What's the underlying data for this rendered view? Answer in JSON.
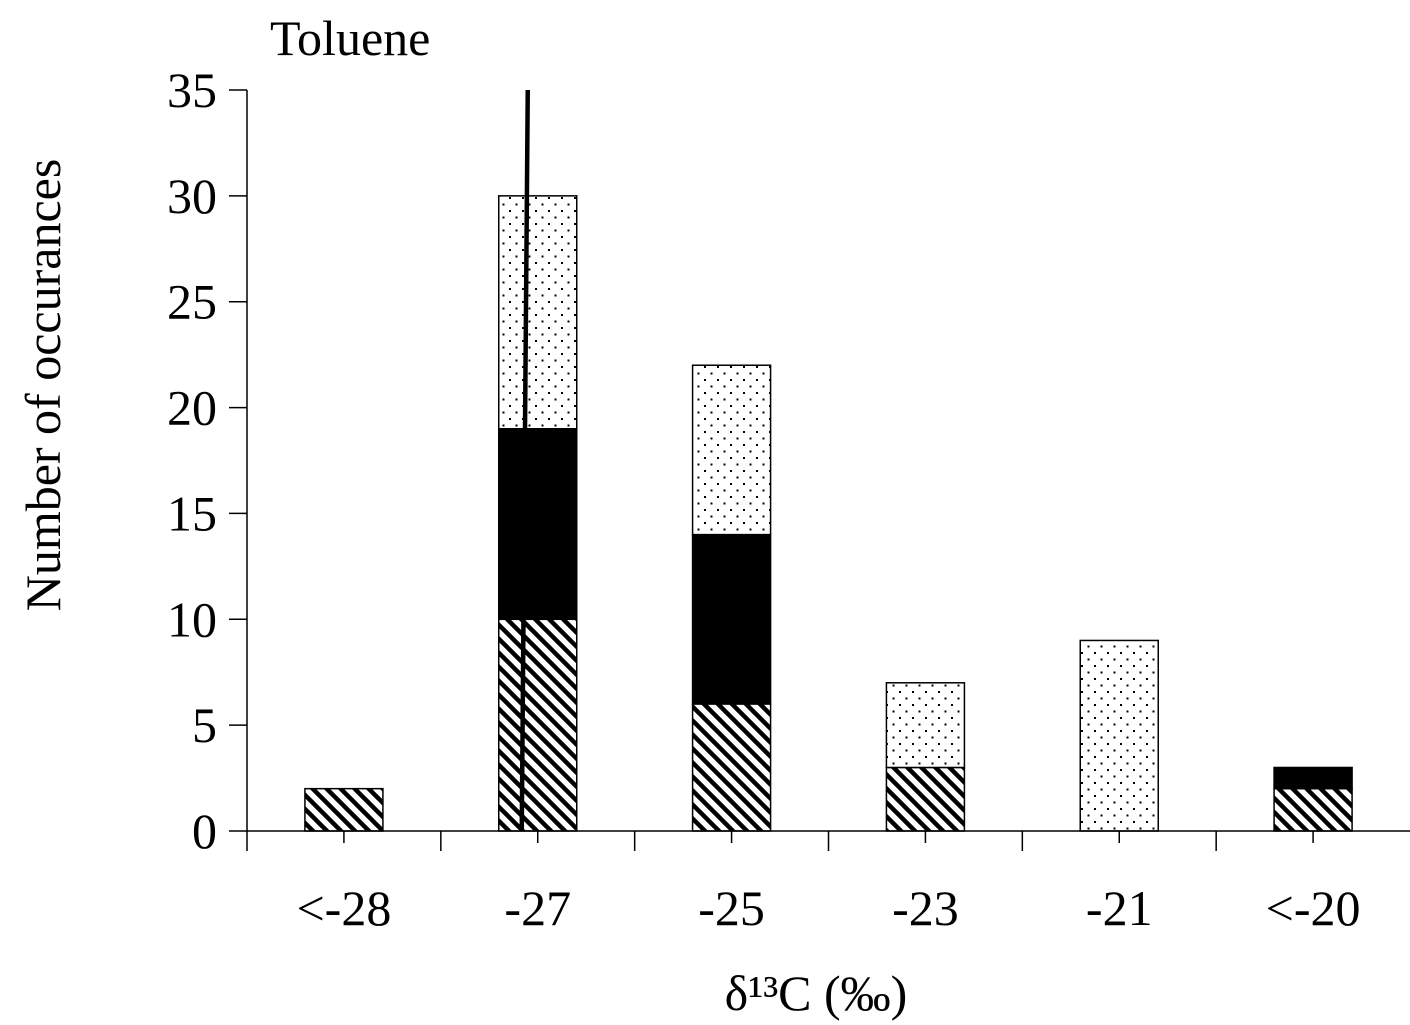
{
  "chart_data": {
    "type": "bar",
    "stacked": true,
    "title": "Toluene",
    "xlabel": "δ¹³C (‰)",
    "ylabel": "Number of occurances",
    "categories": [
      "<-28",
      "-27",
      "-25",
      "-23",
      "-21",
      "<-20"
    ],
    "ylim": [
      0,
      35
    ],
    "yticks": [
      0,
      5,
      10,
      15,
      20,
      25,
      30,
      35
    ],
    "grid": false,
    "legend": "none",
    "series": [
      {
        "pattern": "diagonal-hatch",
        "values": [
          2,
          10,
          6,
          3,
          0,
          2
        ]
      },
      {
        "pattern": "solid-black",
        "values": [
          0,
          9,
          8,
          0,
          0,
          1
        ]
      },
      {
        "pattern": "dotted",
        "values": [
          0,
          11,
          8,
          4,
          9,
          0
        ]
      }
    ],
    "annotation_line": {
      "category": "-27",
      "description": "vertical reference line",
      "y_from": 0,
      "y_to": 35
    },
    "colors": {
      "solid": "#000000",
      "background": "#ffffff"
    }
  }
}
